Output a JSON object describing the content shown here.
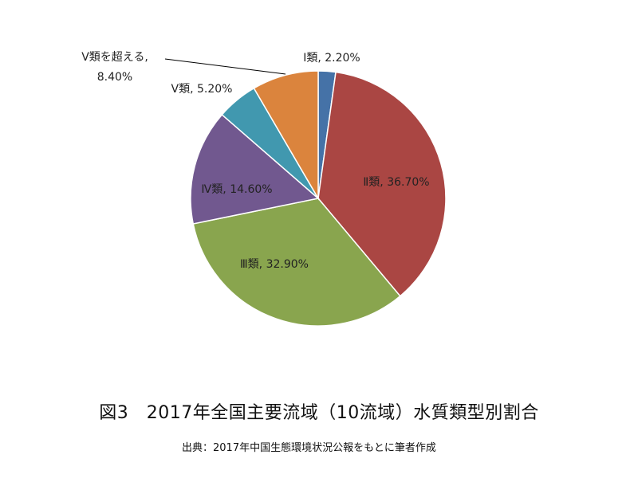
{
  "chart_data": {
    "type": "pie",
    "categories": [
      "Ⅰ類",
      "Ⅱ類",
      "Ⅲ類",
      "Ⅳ類",
      "Ⅴ類",
      "Ⅴ類を超える"
    ],
    "values": [
      2.2,
      36.7,
      32.9,
      14.6,
      5.2,
      8.4
    ],
    "value_labels": [
      "2.20%",
      "36.70%",
      "32.90%",
      "14.60%",
      "5.20%",
      "8.40%"
    ],
    "colors": [
      "#4572a7",
      "#aa4643",
      "#89a54e",
      "#71588f",
      "#4198af",
      "#db843d"
    ],
    "data_labels": [
      "Ⅰ類, 2.20%",
      "Ⅱ類, 36.70%",
      "Ⅲ類, 32.90%",
      "Ⅳ類, 14.60%",
      "Ⅴ類, 5.20%",
      "Ⅴ類を超える, 8.40%"
    ],
    "data_label_lines": [
      [
        "Ⅰ類, 2.20%"
      ],
      [
        "Ⅱ類, 36.70%"
      ],
      [
        "Ⅲ類, 32.90%"
      ],
      [
        "Ⅳ類, 14.60%"
      ],
      [
        "Ⅴ類, 5.20%"
      ],
      [
        "Ⅴ類を超える,",
        "8.40%"
      ]
    ],
    "title": "図3　2017年全国主要流域（10流域）水質類型別割合",
    "source": "出典：2017年中国生態環境状況公報をもとに筆者作成"
  }
}
